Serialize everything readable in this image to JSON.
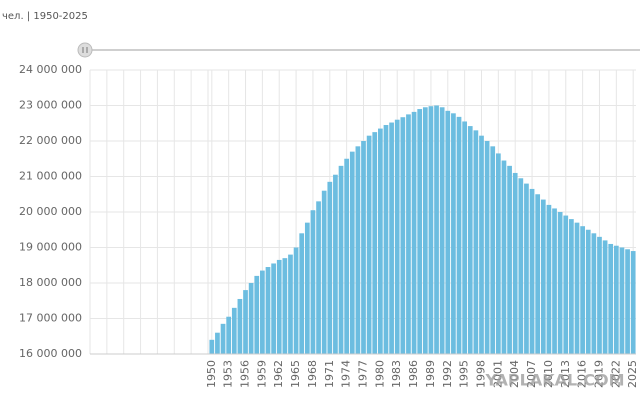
{
  "chart_data": {
    "type": "bar",
    "subtitle": "чел. | 1950-2025",
    "watermark": "YAPLAKAL.COM",
    "color": "#6cbde0",
    "grid": true,
    "categories": [
      "1950",
      null,
      null,
      "1953",
      null,
      null,
      "1956",
      null,
      null,
      "1959",
      null,
      null,
      "1962",
      null,
      null,
      "1965",
      null,
      null,
      "1968",
      null,
      null,
      "1971",
      null,
      null,
      "1974",
      null,
      null,
      "1977",
      null,
      null,
      "1980",
      null,
      null,
      "1983",
      null,
      null,
      "1986",
      null,
      null,
      "1989",
      null,
      null,
      "1992",
      null,
      null,
      "1995",
      null,
      null,
      "1998",
      null,
      null,
      "2001",
      null,
      null,
      "2004",
      null,
      null,
      "2007",
      null,
      null,
      "2010",
      null,
      null,
      "2013",
      null,
      null,
      "2016",
      null,
      null,
      "2019",
      null,
      null,
      "2022",
      null,
      null,
      "2025"
    ],
    "values": [
      16400000,
      16600000,
      16850000,
      17050000,
      17300000,
      17550000,
      17800000,
      18000000,
      18200000,
      18350000,
      18450000,
      18550000,
      18650000,
      18700000,
      18800000,
      19000000,
      19400000,
      19700000,
      20050000,
      20300000,
      20600000,
      20850000,
      21050000,
      21300000,
      21500000,
      21700000,
      21850000,
      22000000,
      22150000,
      22250000,
      22350000,
      22450000,
      22520000,
      22600000,
      22670000,
      22750000,
      22820000,
      22900000,
      22950000,
      22980000,
      23000000,
      22950000,
      22850000,
      22780000,
      22680000,
      22550000,
      22420000,
      22300000,
      22150000,
      22000000,
      21850000,
      21650000,
      21450000,
      21300000,
      21100000,
      20950000,
      20800000,
      20650000,
      20500000,
      20350000,
      20200000,
      20100000,
      20000000,
      19900000,
      19800000,
      19700000,
      19600000,
      19500000,
      19400000,
      19300000,
      19200000,
      19100000,
      19050000,
      19000000,
      18950000,
      18900000
    ],
    "ylim": [
      16000000,
      24000000
    ],
    "yticks": [
      {
        "value": 16000000,
        "label": "16 000 000"
      },
      {
        "value": 17000000,
        "label": "17 000 000"
      },
      {
        "value": 18000000,
        "label": "18 000 000"
      },
      {
        "value": 19000000,
        "label": "19 000 000"
      },
      {
        "value": 20000000,
        "label": "20 000 000"
      },
      {
        "value": 21000000,
        "label": "21 000 000"
      },
      {
        "value": 22000000,
        "label": "22 000 000"
      },
      {
        "value": 23000000,
        "label": "23 000 000"
      },
      {
        "value": 24000000,
        "label": "24 000 000"
      }
    ]
  }
}
